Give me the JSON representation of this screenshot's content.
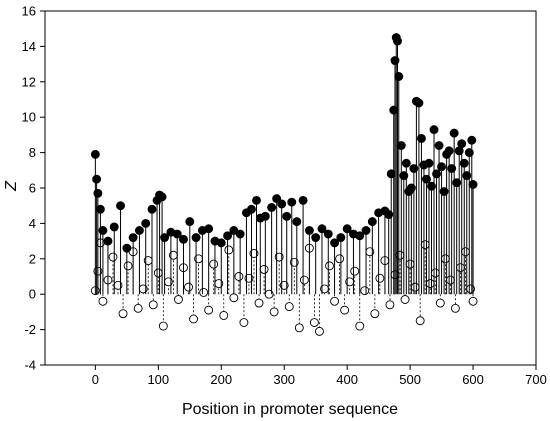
{
  "chart_data": {
    "type": "scatter",
    "xlabel": "Position in promoter sequence",
    "ylabel": "Z",
    "xlim": [
      -80,
      700
    ],
    "ylim": [
      -4,
      16
    ],
    "xticks": [
      0,
      100,
      200,
      300,
      400,
      500,
      600,
      700
    ],
    "yticks": [
      -4,
      -2,
      0,
      2,
      4,
      6,
      8,
      10,
      12,
      14,
      16
    ],
    "grid": false,
    "legend": "none",
    "series": [
      {
        "marker": "filled circle, solid stems",
        "color": "#000000",
        "x": [
          0,
          2,
          4,
          8,
          12,
          20,
          30,
          40,
          50,
          60,
          70,
          80,
          90,
          98,
          102,
          106,
          110,
          120,
          130,
          140,
          150,
          160,
          170,
          180,
          190,
          200,
          210,
          220,
          230,
          240,
          248,
          256,
          262,
          270,
          280,
          288,
          296,
          304,
          312,
          320,
          330,
          340,
          350,
          360,
          370,
          380,
          390,
          400,
          410,
          420,
          430,
          440,
          450,
          460,
          466,
          470,
          474,
          476,
          478,
          480,
          482,
          486,
          490,
          494,
          498,
          502,
          506,
          510,
          514,
          518,
          522,
          526,
          530,
          534,
          538,
          542,
          546,
          550,
          554,
          558,
          562,
          566,
          570,
          574,
          578,
          582,
          586,
          590,
          594,
          598,
          600
        ],
        "values": [
          7.9,
          6.5,
          5.7,
          4.8,
          3.6,
          3.0,
          3.8,
          5.0,
          2.6,
          3.2,
          3.6,
          4.0,
          4.8,
          5.3,
          5.6,
          5.5,
          3.2,
          3.5,
          3.4,
          3.1,
          4.1,
          3.2,
          3.6,
          3.7,
          3.0,
          2.9,
          3.3,
          3.6,
          3.4,
          4.6,
          4.8,
          5.3,
          4.3,
          4.4,
          4.9,
          5.4,
          5.1,
          4.4,
          5.2,
          4.1,
          5.3,
          3.6,
          3.2,
          3.7,
          3.4,
          2.9,
          3.2,
          3.7,
          3.4,
          3.3,
          3.6,
          4.1,
          4.6,
          4.7,
          4.5,
          6.8,
          10.4,
          13.2,
          14.5,
          14.3,
          12.3,
          8.4,
          6.7,
          7.4,
          5.8,
          6.0,
          7.1,
          10.9,
          10.8,
          8.8,
          7.3,
          6.5,
          7.4,
          6.1,
          9.3,
          6.8,
          8.4,
          7.2,
          5.8,
          7.9,
          8.1,
          7.1,
          9.1,
          6.3,
          8.1,
          8.5,
          7.4,
          6.7,
          8.0,
          8.7,
          6.2
        ]
      },
      {
        "marker": "open circle, dotted stems",
        "color": "#000000",
        "x": [
          0,
          4,
          8,
          12,
          20,
          28,
          36,
          44,
          52,
          60,
          68,
          76,
          84,
          92,
          100,
          108,
          116,
          124,
          132,
          140,
          148,
          156,
          164,
          172,
          180,
          188,
          196,
          204,
          212,
          220,
          228,
          236,
          244,
          252,
          260,
          268,
          276,
          284,
          292,
          300,
          308,
          316,
          324,
          332,
          340,
          348,
          356,
          364,
          372,
          380,
          388,
          396,
          404,
          412,
          420,
          428,
          436,
          444,
          452,
          460,
          468,
          476,
          484,
          492,
          500,
          508,
          516,
          524,
          532,
          540,
          548,
          556,
          564,
          572,
          580,
          588,
          596,
          600
        ],
        "values": [
          0.2,
          1.3,
          2.9,
          -0.4,
          0.8,
          2.1,
          0.5,
          -1.1,
          1.6,
          2.4,
          -0.8,
          0.3,
          1.9,
          -0.6,
          1.2,
          -1.8,
          0.7,
          2.2,
          -0.3,
          1.5,
          0.4,
          -1.4,
          2.0,
          0.1,
          -0.9,
          1.7,
          0.6,
          -1.2,
          2.5,
          -0.2,
          1.0,
          -1.6,
          0.9,
          2.3,
          -0.5,
          1.4,
          0.0,
          -1.0,
          2.1,
          0.5,
          -0.7,
          1.8,
          -1.9,
          0.8,
          2.6,
          -1.6,
          -2.1,
          0.3,
          1.6,
          -0.4,
          2.0,
          -0.9,
          0.7,
          1.3,
          -1.8,
          0.2,
          2.4,
          -1.1,
          0.9,
          1.9,
          -0.6,
          1.1,
          2.2,
          -0.3,
          1.7,
          0.4,
          -1.5,
          2.8,
          0.6,
          1.2,
          -0.5,
          2.0,
          0.8,
          -0.8,
          1.5,
          2.4,
          0.3,
          -0.4
        ]
      }
    ]
  }
}
